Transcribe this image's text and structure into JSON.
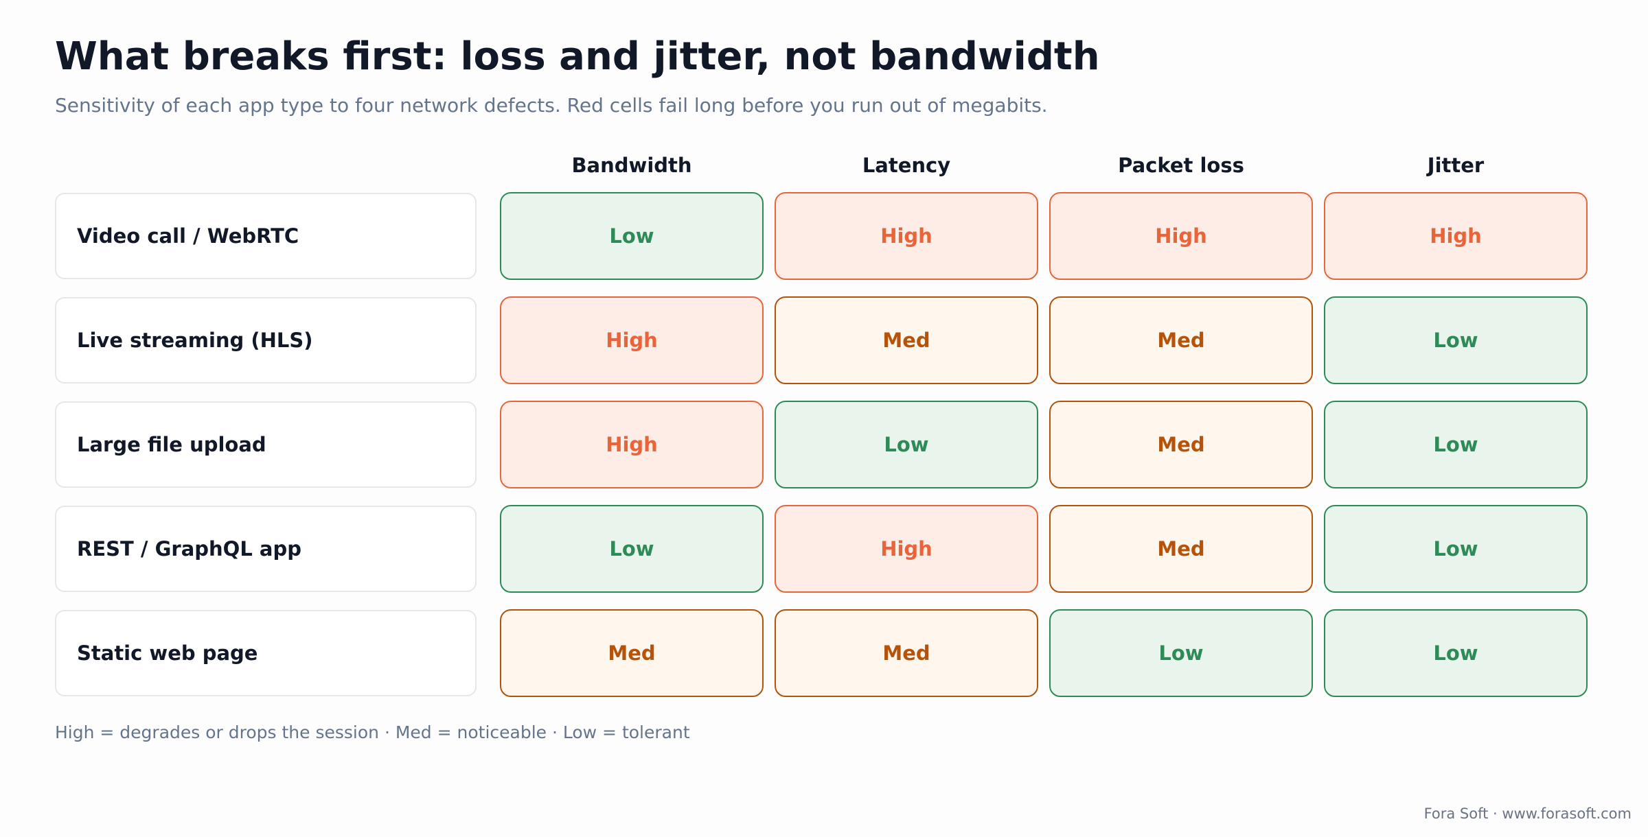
{
  "title": "What breaks first: loss and jitter, not bandwidth",
  "subtitle": "Sensitivity of each app type to four network defects. Red cells fail long before you run out of megabits.",
  "legend": "High = degrades or drops the session · Med = noticeable · Low = tolerant",
  "footer": "Fora Soft · www.forasoft.com",
  "colors": {
    "high": "#e8643a",
    "med": "#b45309",
    "low": "#2e8b57"
  },
  "chart_data": {
    "type": "table",
    "columns": [
      "Bandwidth",
      "Latency",
      "Packet loss",
      "Jitter"
    ],
    "rows": [
      {
        "label": "Video call / WebRTC",
        "values": [
          "Low",
          "High",
          "High",
          "High"
        ]
      },
      {
        "label": "Live streaming (HLS)",
        "values": [
          "High",
          "Med",
          "Med",
          "Low"
        ]
      },
      {
        "label": "Large file upload",
        "values": [
          "High",
          "Low",
          "Med",
          "Low"
        ]
      },
      {
        "label": "REST / GraphQL app",
        "values": [
          "Low",
          "High",
          "Med",
          "Low"
        ]
      },
      {
        "label": "Static web page",
        "values": [
          "Med",
          "Med",
          "Low",
          "Low"
        ]
      }
    ]
  }
}
